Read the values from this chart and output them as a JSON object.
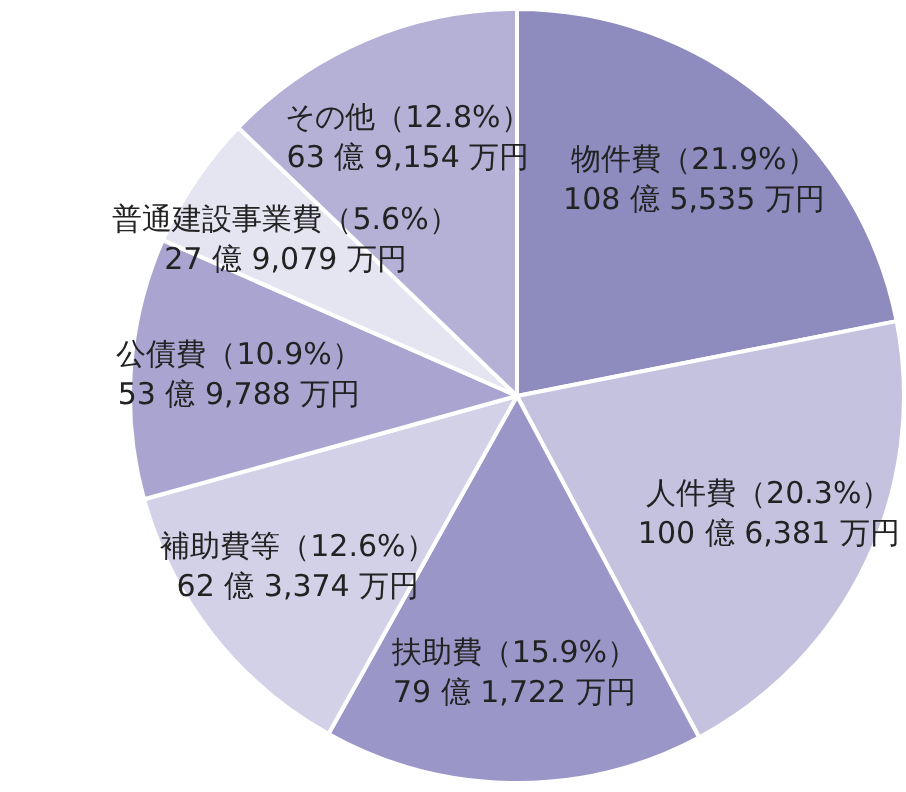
{
  "chart_data": {
    "type": "pie",
    "categories": [
      "物件費",
      "人件費",
      "扶助費",
      "補助費等",
      "公債費",
      "普通建設事業費",
      "その他"
    ],
    "values": [
      21.9,
      20.3,
      15.9,
      12.6,
      10.9,
      5.6,
      12.8
    ],
    "colors": [
      "#8e8bbf",
      "#c5c2e0",
      "#9b96c8",
      "#d3d1e8",
      "#a9a5d0",
      "#e5e4f1",
      "#b5b1d6"
    ],
    "value_labels": [
      "（21.9%）\n108 億 5,535 万円",
      "（20.3%）\n100 億 6,381 万円",
      "（15.9%）\n79 億 1,722 万円",
      "（12.6%）\n62 億 3,374 万円",
      "（10.9%）\n53 億 9,788 万円",
      "（5.6%）\n27 億 9,079 万円",
      "（12.8%）\n63 億 9,154 万円"
    ]
  }
}
